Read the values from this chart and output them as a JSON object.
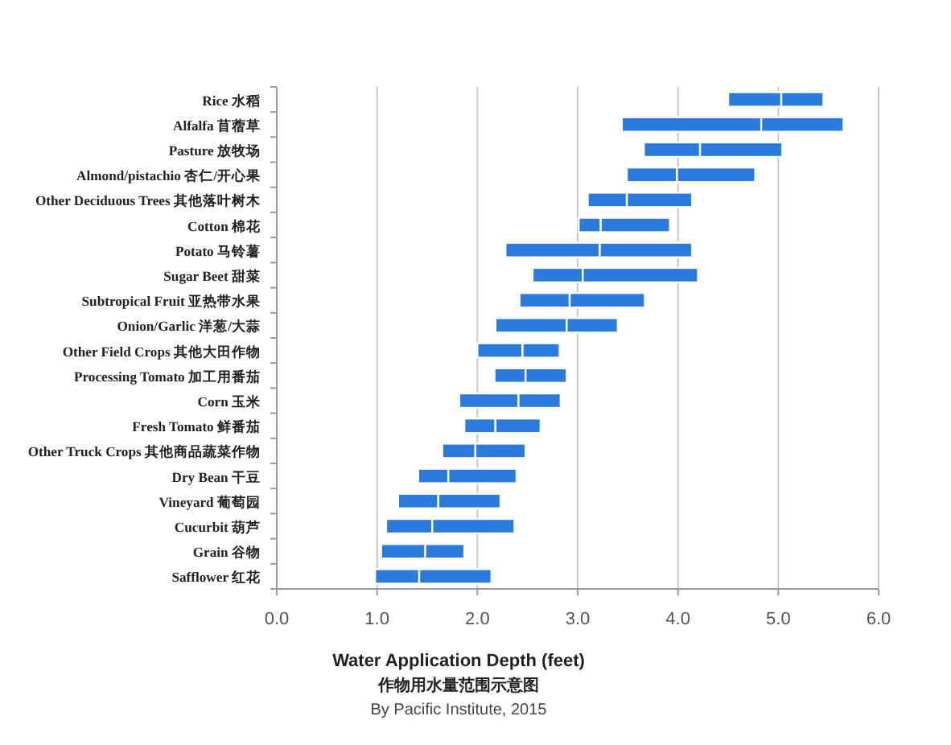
{
  "chart_data": {
    "type": "bar",
    "orientation": "horizontal",
    "xlabel": "Water Application Depth (feet)",
    "title": "作物用水量范围示意图",
    "annotations": [
      "By Pacific Institute, 2015"
    ],
    "categories": [
      "Rice 水稻",
      "Alfalfa 苜蓿草",
      "Pasture 放牧场",
      "Almond/pistachio 杏仁/开心果",
      "Other Deciduous Trees 其他落叶树木",
      "Cotton 棉花",
      "Potato 马铃薯",
      "Sugar Beet 甜菜",
      "Subtropical Fruit 亚热带水果",
      "Onion/Garlic 洋葱/大蒜",
      "Other Field Crops 其他大田作物",
      "Processing Tomato 加工用番茄",
      "Corn 玉米",
      "Fresh Tomato 鲜番茄",
      "Other Truck Crops 其他商品蔬菜作物",
      "Dry Bean 干豆",
      "Vineyard 葡萄园",
      "Cucurbit 葫芦",
      "Grain 谷物",
      "Safflower 红花"
    ],
    "series": [
      {
        "color": "#2a7bdc",
        "base": [
          4.5,
          3.44,
          3.66,
          3.49,
          3.1,
          3.01,
          2.28,
          2.55,
          2.42,
          2.18,
          2.0,
          2.17,
          1.82,
          1.87,
          1.65,
          1.41,
          1.21,
          1.09,
          1.04,
          0.98
        ],
        "values": [
          0.53,
          1.39,
          0.56,
          0.5,
          0.39,
          0.22,
          0.94,
          0.5,
          0.5,
          0.71,
          0.45,
          0.31,
          0.59,
          0.31,
          0.33,
          0.3,
          0.4,
          0.46,
          0.44,
          0.44
        ]
      },
      {
        "color": "#2a7bdc",
        "base": [
          5.03,
          4.83,
          4.22,
          3.99,
          3.49,
          3.23,
          3.22,
          3.05,
          2.92,
          2.89,
          2.45,
          2.48,
          2.41,
          2.18,
          1.98,
          1.71,
          1.61,
          1.55,
          1.48,
          1.42
        ],
        "values": [
          0.42,
          0.82,
          0.82,
          0.78,
          0.65,
          0.69,
          0.92,
          1.15,
          0.75,
          0.51,
          0.37,
          0.41,
          0.42,
          0.45,
          0.5,
          0.68,
          0.62,
          0.82,
          0.39,
          0.72
        ]
      }
    ],
    "xlim": [
      0,
      6
    ],
    "xticks": [
      {
        "value": 0,
        "label": "0.0"
      },
      {
        "value": 1,
        "label": "1.0"
      },
      {
        "value": 2,
        "label": "2.0"
      },
      {
        "value": 3,
        "label": "3.0"
      },
      {
        "value": 4,
        "label": "4.0"
      },
      {
        "value": 5,
        "label": "5.0"
      },
      {
        "value": 6,
        "label": "6.0"
      }
    ],
    "grid": "x"
  }
}
